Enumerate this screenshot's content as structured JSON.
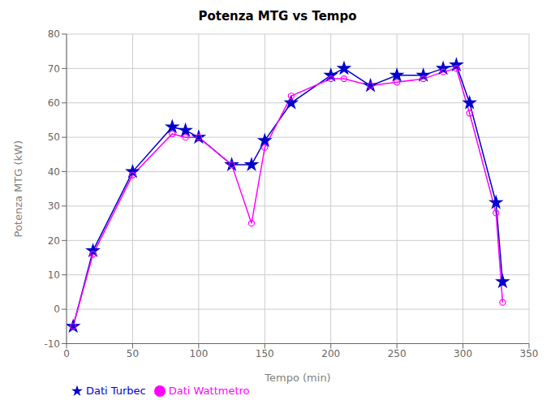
{
  "chart_data": {
    "type": "line",
    "title": "Potenza MTG vs Tempo",
    "xlabel": "Tempo (min)",
    "ylabel": "Potenza MTG (kW)",
    "x": [
      5,
      20,
      50,
      80,
      90,
      100,
      125,
      140,
      150,
      170,
      200,
      210,
      230,
      250,
      270,
      285,
      295,
      305,
      325,
      330
    ],
    "series": [
      {
        "name": "Dati Turbec",
        "color": "#0000CD",
        "marker": "star",
        "values": [
          -5,
          17,
          40,
          53,
          52,
          50,
          42,
          42,
          49,
          60,
          68,
          70,
          65,
          68,
          68,
          70,
          71,
          60,
          31,
          8
        ]
      },
      {
        "name": "Dati Wattmetro",
        "color": "#FF00FF",
        "marker": "circle",
        "values": [
          -5,
          16,
          39,
          51,
          50,
          50,
          42,
          25,
          47,
          62,
          67,
          67,
          65,
          66,
          67,
          69,
          70,
          57,
          28,
          2
        ]
      }
    ],
    "xlim": [
      0,
      350
    ],
    "ylim": [
      -10,
      80
    ],
    "xticks": [
      0,
      50,
      100,
      150,
      200,
      250,
      300,
      350
    ],
    "yticks": [
      -10,
      0,
      10,
      20,
      30,
      40,
      50,
      60,
      70,
      80
    ],
    "grid": true,
    "legend": "lower left"
  }
}
